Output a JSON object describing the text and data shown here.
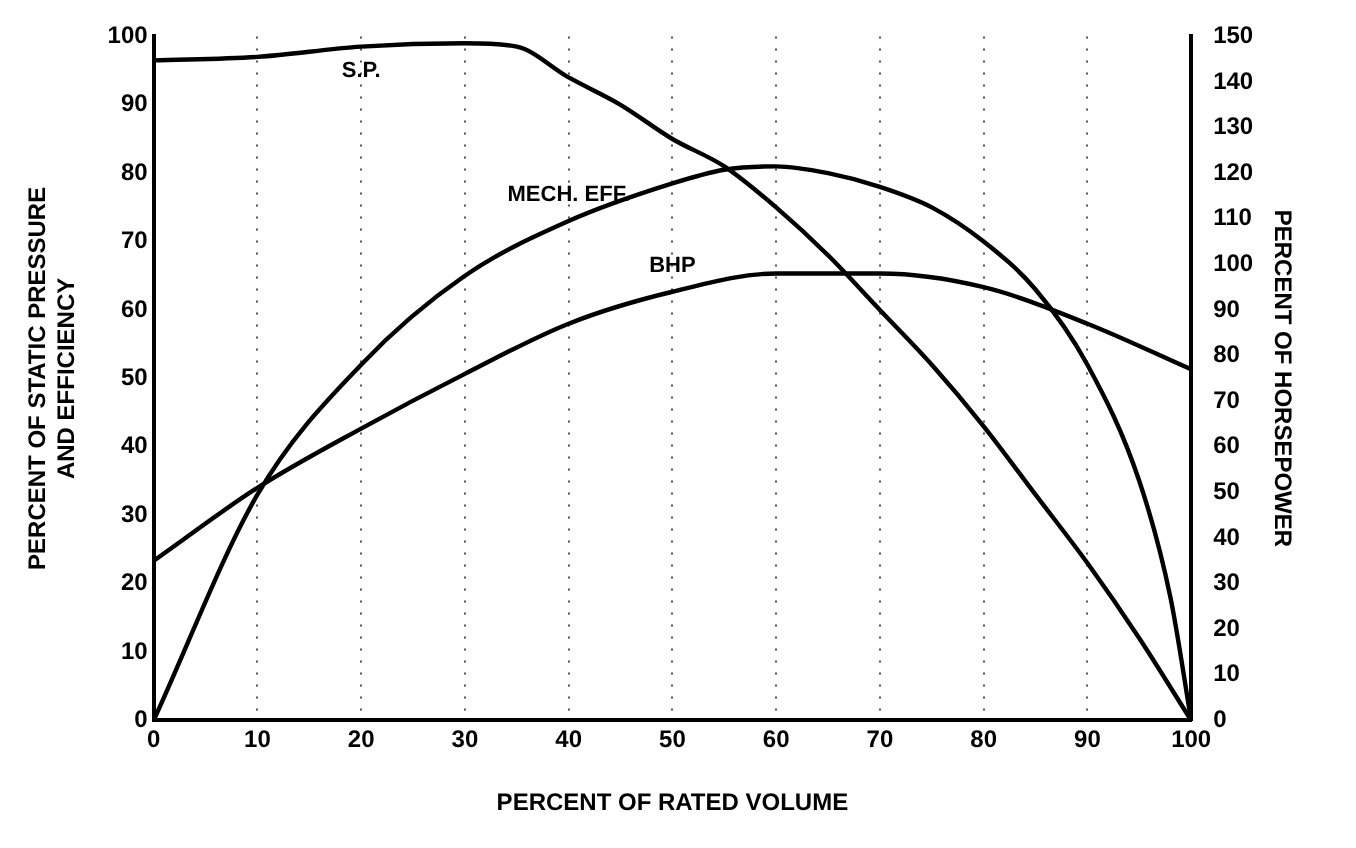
{
  "chart_data": {
    "type": "line",
    "xlabel": "PERCENT OF RATED VOLUME",
    "ylabel": "PERCENT OF STATIC PRESSURE\nAND EFFICIENCY",
    "y2label": "PERCENT OF HORSEPOWER",
    "xlim": [
      0,
      100
    ],
    "xticks": [
      0,
      10,
      20,
      30,
      40,
      50,
      60,
      70,
      80,
      90,
      100
    ],
    "ylim": [
      0,
      100
    ],
    "yticks": [
      0,
      10,
      20,
      30,
      40,
      50,
      60,
      70,
      80,
      90,
      100
    ],
    "y2lim": [
      0,
      150
    ],
    "y2ticks": [
      0,
      10,
      20,
      30,
      40,
      50,
      60,
      70,
      80,
      90,
      100,
      110,
      120,
      130,
      140,
      150
    ],
    "grid": "x",
    "marker": "none",
    "line_style": "solid",
    "series": [
      {
        "color": "#000000",
        "x": [
          0,
          10,
          20,
          30,
          35,
          40,
          45,
          50,
          55,
          60,
          65,
          70,
          75,
          80,
          85,
          90,
          95,
          100
        ],
        "values": [
          96.5,
          97,
          98.5,
          99,
          98.5,
          94,
          90,
          85,
          81,
          75,
          68,
          60,
          52,
          43,
          33,
          23,
          12,
          0
        ]
      },
      {
        "color": "#000000",
        "x": [
          0,
          10,
          20,
          30,
          40,
          50,
          55,
          60,
          65,
          70,
          75,
          80,
          85,
          90,
          95,
          98,
          100
        ],
        "values": [
          0,
          33,
          52,
          65,
          73,
          78.5,
          80.5,
          81,
          80,
          78,
          75,
          70,
          63,
          52,
          35,
          18,
          0
        ]
      },
      {
        "color": "#000000",
        "axis": "y2",
        "x": [
          0,
          10,
          20,
          30,
          40,
          50,
          60,
          67,
          70,
          80,
          90,
          100
        ],
        "values": [
          35,
          51,
          64,
          76,
          87,
          94,
          98,
          98,
          98,
          95,
          87,
          77
        ]
      }
    ],
    "annotations": [
      {
        "text": "S.P.",
        "x": 20,
        "y": 98.5
      },
      {
        "text": "MECH. EFF.",
        "x": 40,
        "y": 73
      },
      {
        "text": "BHP",
        "x": 50,
        "y": 62.7
      }
    ]
  }
}
